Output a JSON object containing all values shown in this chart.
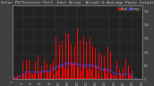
{
  "title": "Solar PV/Inverter Perf  East Array  Actual & Average Power Output",
  "title_fontsize": 3.2,
  "bg_color": "#404040",
  "plot_bg_color": "#222222",
  "bar_color": "#ff0000",
  "avg_line_color": "#4444ff",
  "grid_color": "#888888",
  "text_color": "#cccccc",
  "ylim": [
    0,
    2700
  ],
  "num_bars": 300,
  "seed": 99,
  "days": 40
}
